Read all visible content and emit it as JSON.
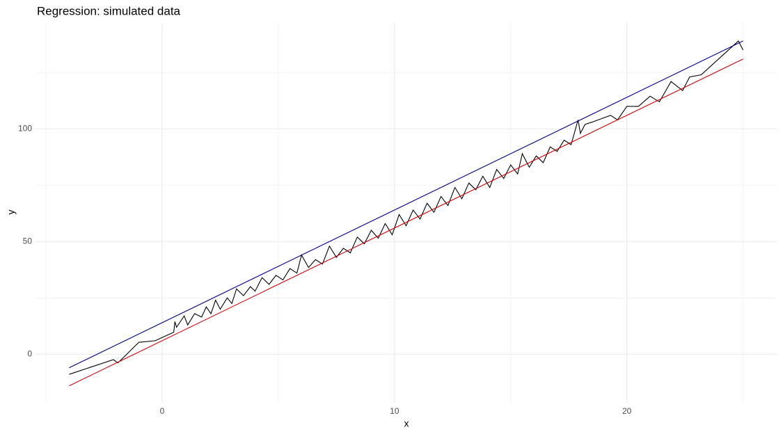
{
  "chart_data": {
    "type": "line",
    "title": "Regression: simulated data",
    "x_label": "x",
    "y_label": "y",
    "xlim": [
      -5.45,
      26.45
    ],
    "ylim": [
      -21.5,
      147
    ],
    "xticks": [
      0,
      10,
      20
    ],
    "yticks": [
      0,
      50,
      100
    ],
    "xminor": [
      -5,
      5,
      15,
      25
    ],
    "yminor": [
      25,
      75,
      125
    ],
    "grid": true,
    "series": [
      {
        "color": "#000000",
        "x": [
          -4,
          -2.1,
          -1.9,
          -1,
          -0.3,
          0.5,
          0.55,
          0.62,
          0.95,
          1.1,
          1.4,
          1.7,
          1.9,
          2.1,
          2.3,
          2.5,
          2.8,
          3.0,
          3.2,
          3.5,
          3.8,
          4.0,
          4.3,
          4.6,
          4.9,
          5.2,
          5.5,
          5.8,
          6.0,
          6.3,
          6.6,
          6.9,
          7.2,
          7.5,
          7.8,
          8.1,
          8.4,
          8.7,
          9.0,
          9.3,
          9.6,
          9.9,
          10.2,
          10.5,
          10.8,
          11.1,
          11.4,
          11.7,
          12.0,
          12.3,
          12.6,
          12.9,
          13.2,
          13.5,
          13.8,
          14.1,
          14.4,
          14.7,
          15.0,
          15.3,
          15.5,
          15.8,
          16.1,
          16.4,
          16.7,
          17.0,
          17.3,
          17.6,
          17.9,
          18.0,
          18.2,
          18.5,
          19.3,
          19.6,
          20.0,
          20.5,
          21.0,
          21.4,
          21.9,
          22.4,
          22.7,
          23.2,
          24.8,
          25.0
        ],
        "values": [
          -8.9,
          -2.4,
          -3.8,
          5.3,
          6,
          9.8,
          14.5,
          12,
          17,
          13,
          18,
          16.5,
          21,
          18,
          24,
          20,
          25,
          22.5,
          29,
          26,
          30,
          28,
          34,
          31,
          35,
          33,
          38,
          36,
          44,
          38.5,
          42,
          40,
          48,
          43,
          47,
          45,
          52,
          49,
          55,
          51.5,
          58,
          53,
          62,
          57,
          64,
          60,
          67,
          63,
          70,
          66,
          74,
          69,
          76,
          73,
          79,
          74,
          82,
          78,
          84,
          80,
          89,
          83,
          88,
          85,
          92,
          90,
          95,
          93,
          104,
          98,
          102,
          103,
          106,
          104,
          110,
          110,
          114.5,
          112,
          121,
          117,
          123,
          124,
          139,
          135
        ]
      },
      {
        "color": "#00008b",
        "x": [
          -4,
          25
        ],
        "values": [
          -6,
          139
        ]
      },
      {
        "color": "#cd0000",
        "x": [
          -4,
          25
        ],
        "values": [
          -14,
          131
        ]
      }
    ]
  }
}
